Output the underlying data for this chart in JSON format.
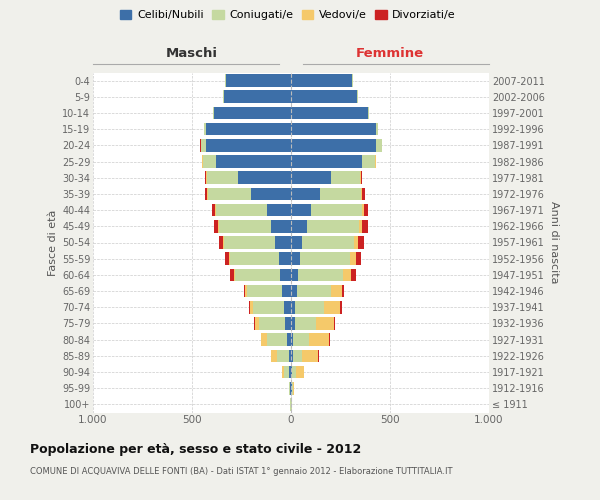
{
  "age_groups": [
    "100+",
    "95-99",
    "90-94",
    "85-89",
    "80-84",
    "75-79",
    "70-74",
    "65-69",
    "60-64",
    "55-59",
    "50-54",
    "45-49",
    "40-44",
    "35-39",
    "30-34",
    "25-29",
    "20-24",
    "15-19",
    "10-14",
    "5-9",
    "0-4"
  ],
  "birth_years": [
    "≤ 1911",
    "1912-1916",
    "1917-1921",
    "1922-1926",
    "1927-1931",
    "1932-1936",
    "1937-1941",
    "1942-1946",
    "1947-1951",
    "1952-1956",
    "1957-1961",
    "1962-1966",
    "1967-1971",
    "1972-1976",
    "1977-1981",
    "1982-1986",
    "1987-1991",
    "1992-1996",
    "1997-2001",
    "2002-2006",
    "2007-2011"
  ],
  "maschi": {
    "celibi": [
      2,
      3,
      8,
      10,
      20,
      30,
      35,
      45,
      55,
      60,
      80,
      100,
      120,
      200,
      270,
      380,
      430,
      430,
      390,
      340,
      330
    ],
    "coniugati": [
      2,
      5,
      25,
      60,
      100,
      130,
      155,
      175,
      230,
      250,
      260,
      265,
      260,
      220,
      155,
      65,
      25,
      8,
      3,
      2,
      2
    ],
    "vedovi": [
      0,
      2,
      12,
      30,
      30,
      20,
      15,
      10,
      5,
      5,
      5,
      3,
      2,
      2,
      2,
      2,
      1,
      0,
      0,
      0,
      0
    ],
    "divorziati": [
      0,
      0,
      0,
      1,
      2,
      5,
      8,
      8,
      20,
      20,
      18,
      20,
      18,
      12,
      8,
      5,
      2,
      1,
      0,
      0,
      0
    ]
  },
  "femmine": {
    "nubili": [
      2,
      3,
      5,
      8,
      12,
      18,
      22,
      30,
      35,
      45,
      55,
      80,
      100,
      145,
      200,
      360,
      430,
      430,
      390,
      335,
      310
    ],
    "coniugate": [
      2,
      5,
      20,
      50,
      80,
      110,
      145,
      170,
      230,
      255,
      265,
      265,
      260,
      210,
      150,
      65,
      30,
      8,
      3,
      2,
      2
    ],
    "vedove": [
      2,
      8,
      40,
      80,
      100,
      90,
      80,
      60,
      40,
      30,
      20,
      15,
      8,
      5,
      3,
      2,
      1,
      0,
      0,
      0,
      0
    ],
    "divorziate": [
      0,
      0,
      1,
      2,
      3,
      5,
      10,
      10,
      22,
      25,
      30,
      30,
      22,
      12,
      5,
      3,
      1,
      0,
      0,
      0,
      0
    ]
  },
  "colors": {
    "celibi_nubili": "#3d6fa8",
    "coniugati": "#c5d9a0",
    "vedovi": "#f5c96a",
    "divorziati": "#cc2222"
  },
  "xlim": 1000,
  "title": "Popolazione per età, sesso e stato civile - 2012",
  "subtitle": "COMUNE DI ACQUAVIVA DELLE FONTI (BA) - Dati ISTAT 1° gennaio 2012 - Elaborazione TUTTITALIA.IT",
  "ylabel_left": "Fasce di età",
  "ylabel_right": "Anni di nascita",
  "header_left": "Maschi",
  "header_right": "Femmine",
  "legend_labels": [
    "Celibi/Nubili",
    "Coniugati/e",
    "Vedovi/e",
    "Divorziati/e"
  ],
  "bg_color": "#f0f0eb",
  "bar_bg_color": "#ffffff"
}
